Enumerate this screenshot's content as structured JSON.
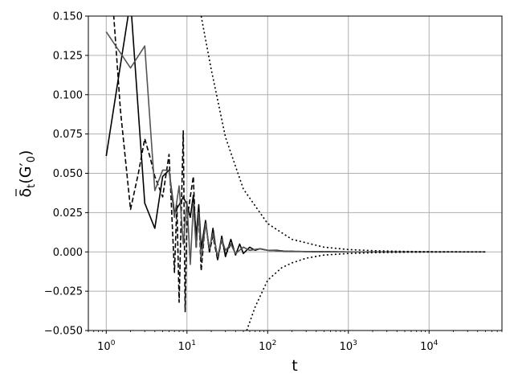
{
  "chart_data": {
    "type": "line",
    "xlabel": "t",
    "ylabel_base": "δ",
    "ylabel_sub": "t",
    "ylabel_args": "(G′",
    "ylabel_args_sub": "0",
    "ylabel_close": ")",
    "xscale": "log",
    "xlim": [
      0.6,
      80000
    ],
    "ylim": [
      -0.05,
      0.15
    ],
    "grid": true,
    "x_ticks": [
      {
        "value": 1,
        "base": "10",
        "exp": "0"
      },
      {
        "value": 10,
        "base": "10",
        "exp": "1"
      },
      {
        "value": 100,
        "base": "10",
        "exp": "2"
      },
      {
        "value": 1000,
        "base": "10",
        "exp": "3"
      },
      {
        "value": 10000,
        "base": "10",
        "exp": "4"
      }
    ],
    "y_ticks": [
      {
        "value": -0.05,
        "label": "−0.050"
      },
      {
        "value": -0.025,
        "label": "−0.025"
      },
      {
        "value": 0,
        "label": "0.000"
      },
      {
        "value": 0.025,
        "label": "0.025"
      },
      {
        "value": 0.05,
        "label": "0.050"
      },
      {
        "value": 0.075,
        "label": "0.075"
      },
      {
        "value": 0.1,
        "label": "0.100"
      },
      {
        "value": 0.125,
        "label": "0.125"
      },
      {
        "value": 0.15,
        "label": "0.150"
      }
    ],
    "series": [
      {
        "style": "solid",
        "color": "#000000",
        "x": [
          1,
          2,
          3,
          4,
          5,
          6,
          7,
          8,
          9,
          10,
          11,
          12,
          13,
          14,
          15,
          17,
          19,
          21,
          24,
          27,
          30,
          35,
          40,
          45,
          50,
          60,
          70,
          80,
          100,
          130,
          160,
          200,
          300,
          500,
          1000,
          3000,
          10000,
          50000
        ],
        "y": [
          0.061,
          0.16,
          0.031,
          0.015,
          0.048,
          0.052,
          0.025,
          0.03,
          0.035,
          0.03,
          0.022,
          0.036,
          0.01,
          0.03,
          0.002,
          0.02,
          0.0,
          0.015,
          -0.005,
          0.01,
          -0.003,
          0.008,
          -0.002,
          0.005,
          -0.001,
          0.003,
          0.001,
          0.002,
          0.001,
          0.001,
          0.0005,
          0.0003,
          0.0002,
          0.0001,
          0.0,
          0.0,
          0.0,
          0.0
        ]
      },
      {
        "style": "dashed",
        "color": "#000000",
        "x": [
          1.2,
          1.5,
          2,
          2.5,
          3,
          3.5,
          4,
          5,
          6,
          7,
          7.5,
          8,
          9,
          9.5,
          10,
          11,
          12,
          13,
          14,
          15,
          17,
          19,
          21,
          24,
          27,
          30,
          35,
          40,
          50,
          60,
          80,
          100,
          150,
          300,
          1000,
          5000,
          50000
        ],
        "y": [
          0.16,
          0.09,
          0.027,
          0.05,
          0.072,
          0.06,
          0.048,
          0.035,
          0.062,
          -0.013,
          0.03,
          -0.032,
          0.077,
          -0.038,
          0.02,
          0.035,
          0.048,
          0.002,
          0.025,
          -0.012,
          0.02,
          0.0,
          0.01,
          -0.005,
          0.008,
          -0.002,
          0.005,
          -0.001,
          0.003,
          0.001,
          0.002,
          0.001,
          0.0005,
          0.0002,
          0.0,
          0.0,
          0.0
        ]
      },
      {
        "style": "solid",
        "color": "#555555",
        "x": [
          1,
          2,
          3,
          4,
          5,
          6,
          7,
          8,
          9,
          10,
          11,
          12,
          13,
          14,
          15,
          17,
          19,
          21,
          24,
          27,
          30,
          35,
          40,
          50,
          60,
          80,
          100,
          150,
          300,
          1000,
          5000,
          50000
        ],
        "y": [
          0.14,
          0.117,
          0.131,
          0.039,
          0.052,
          0.052,
          0.022,
          0.042,
          0.005,
          0.032,
          -0.008,
          0.03,
          0.003,
          0.025,
          -0.005,
          0.018,
          0.002,
          0.012,
          -0.003,
          0.008,
          0.001,
          0.005,
          -0.001,
          0.003,
          0.001,
          0.002,
          0.001,
          0.0005,
          0.0002,
          0.0,
          0.0,
          0.0
        ]
      },
      {
        "style": "dotted",
        "color": "#000000",
        "x": [
          15,
          20,
          30,
          50,
          100,
          200,
          500,
          1000,
          2000,
          5000,
          10000,
          20000,
          50000
        ],
        "y": [
          0.15,
          0.116,
          0.073,
          0.04,
          0.018,
          0.008,
          0.003,
          0.0015,
          0.0008,
          0.0003,
          0.00015,
          8e-05,
          3e-05
        ]
      },
      {
        "style": "dotted",
        "color": "#000000",
        "x": [
          55,
          70,
          100,
          150,
          200,
          300,
          500,
          1000,
          2000,
          5000,
          10000,
          20000,
          50000
        ],
        "y": [
          -0.05,
          -0.035,
          -0.018,
          -0.01,
          -0.007,
          -0.004,
          -0.002,
          -0.001,
          -0.0005,
          -0.0002,
          -0.0001,
          -5e-05,
          -2e-05
        ]
      }
    ]
  }
}
